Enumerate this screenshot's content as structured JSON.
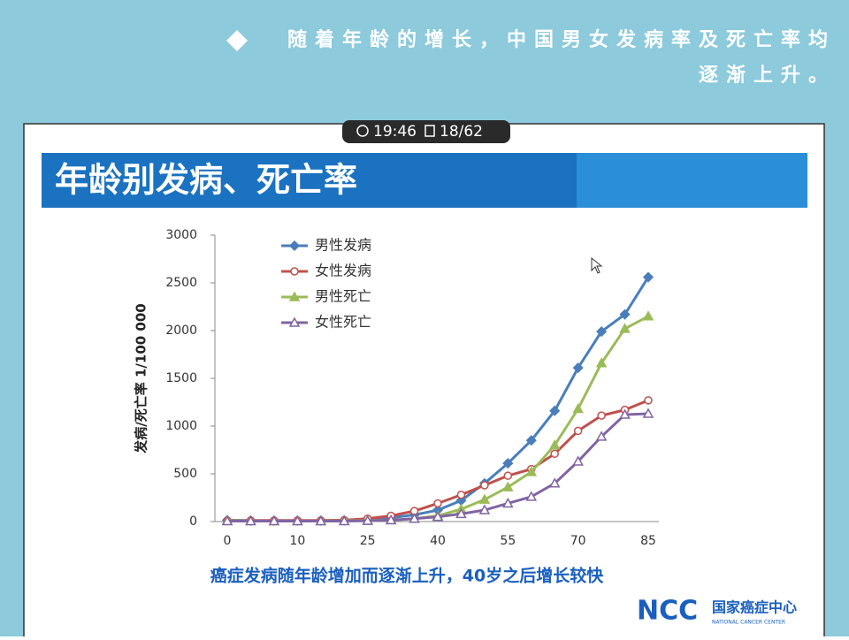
{
  "header": {
    "text": "随着年龄的增长，中国男女发病率及死亡率均逐渐上升。"
  },
  "status": {
    "time": "19:46",
    "page": "18/62"
  },
  "chart_data": {
    "type": "line",
    "title": "年龄别发病、死亡率",
    "y_label": "发病/死亡率  1/100 000",
    "categories": [
      "0",
      null,
      null,
      "10",
      null,
      null,
      "25",
      null,
      null,
      "40",
      null,
      null,
      "55",
      null,
      null,
      "70",
      null,
      null,
      "85"
    ],
    "series": [
      {
        "name": "男性发病",
        "color": "#4a7ebb",
        "marker": "diamond",
        "values": [
          15,
          10,
          10,
          10,
          10,
          12,
          20,
          40,
          70,
          120,
          220,
          400,
          610,
          850,
          1160,
          1610,
          1990,
          2170,
          2560
        ]
      },
      {
        "name": "女性发病",
        "color": "#c0504d",
        "marker": "circle-open",
        "values": [
          10,
          10,
          10,
          10,
          10,
          15,
          30,
          60,
          110,
          190,
          280,
          380,
          480,
          550,
          710,
          950,
          1110,
          1170,
          1270
        ]
      },
      {
        "name": "男性死亡",
        "color": "#9bbb59",
        "marker": "triangle",
        "values": [
          10,
          5,
          5,
          5,
          5,
          8,
          10,
          15,
          30,
          60,
          130,
          230,
          360,
          520,
          800,
          1180,
          1660,
          2020,
          2150
        ]
      },
      {
        "name": "女性死亡",
        "color": "#8064a2",
        "marker": "triangle-open",
        "values": [
          5,
          5,
          5,
          5,
          5,
          5,
          8,
          15,
          30,
          50,
          80,
          120,
          190,
          260,
          400,
          630,
          890,
          1120,
          1130
        ]
      }
    ],
    "ylim": [
      0,
      3000
    ],
    "yticks": [
      0,
      500,
      1000,
      1500,
      2000,
      2500,
      3000
    ],
    "grid": false,
    "legend": "upper-left",
    "caption": "癌症发病随年龄增加而逐渐上升，40岁之后增长较快"
  },
  "logo": {
    "mark": "NCC",
    "name": "国家癌症中心",
    "sub": "NATIONAL CANCER CENTER"
  }
}
